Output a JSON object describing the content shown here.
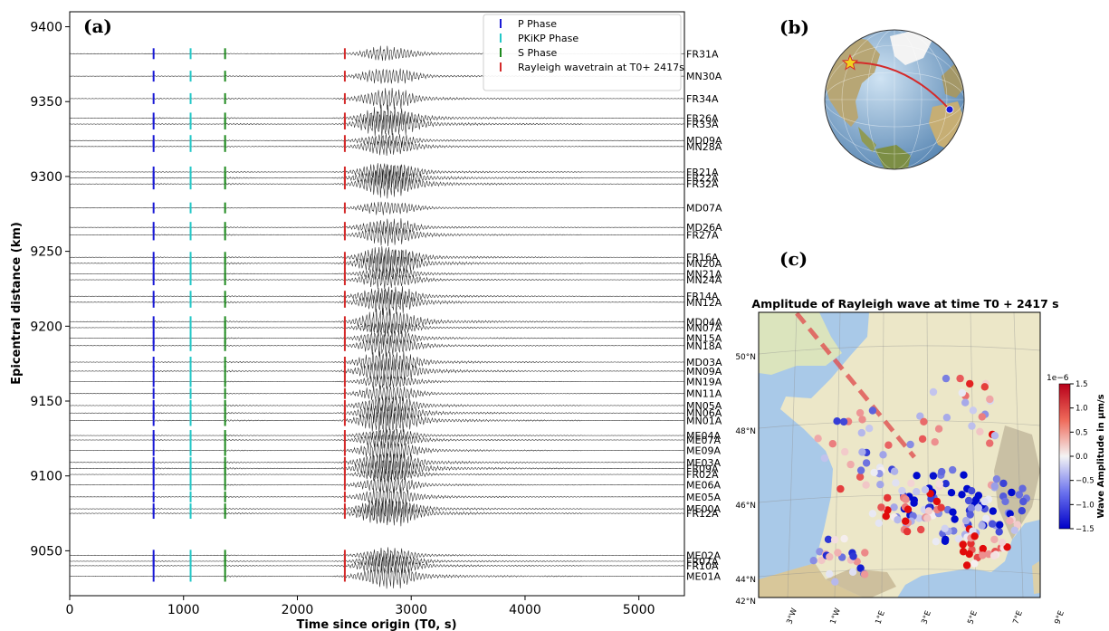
{
  "panels": {
    "a": "(a)",
    "b": "(b)",
    "c": "(c)"
  },
  "chart_data": [
    {
      "type": "line",
      "panel": "(a)",
      "xlabel": "Time since origin (T0, s)",
      "ylabel": "Epicentral distance (km)",
      "xlim": [
        0,
        5400
      ],
      "ylim": [
        9020,
        9410
      ],
      "xticks": [
        "0",
        "1000",
        "2000",
        "3000",
        "4000",
        "5000"
      ],
      "yticks": [
        "9050",
        "9100",
        "9150",
        "9200",
        "9250",
        "9300",
        "9350",
        "9400"
      ],
      "grid": false,
      "legend_position": "top-right",
      "legend": [
        {
          "label": "P Phase",
          "color": "#1a1ad6"
        },
        {
          "label": "PKiKP Phase",
          "color": "#22c7c7"
        },
        {
          "label": "S Phase",
          "color": "#1e8a1e"
        },
        {
          "label": "Rayleigh wavetrain at T0+ 2417s",
          "color": "#d42a2a"
        }
      ],
      "stations": [
        {
          "name": "FR31A",
          "distance": 9382
        },
        {
          "name": "MN30A",
          "distance": 9367
        },
        {
          "name": "FR34A",
          "distance": 9352
        },
        {
          "name": "FR26A",
          "distance": 9339
        },
        {
          "name": "FR33A",
          "distance": 9335
        },
        {
          "name": "MD09A",
          "distance": 9324
        },
        {
          "name": "MN28A",
          "distance": 9320
        },
        {
          "name": "FR21A",
          "distance": 9303
        },
        {
          "name": "FR22A",
          "distance": 9299
        },
        {
          "name": "FR32A",
          "distance": 9295
        },
        {
          "name": "MD07A",
          "distance": 9279
        },
        {
          "name": "MD26A",
          "distance": 9266
        },
        {
          "name": "FR27A",
          "distance": 9261
        },
        {
          "name": "FR16A",
          "distance": 9246
        },
        {
          "name": "MN20A",
          "distance": 9242
        },
        {
          "name": "MN21A",
          "distance": 9235
        },
        {
          "name": "MN24A",
          "distance": 9231
        },
        {
          "name": "FR14A",
          "distance": 9220
        },
        {
          "name": "MN12A",
          "distance": 9216
        },
        {
          "name": "MD04A",
          "distance": 9203
        },
        {
          "name": "MN07A",
          "distance": 9199
        },
        {
          "name": "MN15A",
          "distance": 9192
        },
        {
          "name": "MN18A",
          "distance": 9187
        },
        {
          "name": "MD03A",
          "distance": 9176
        },
        {
          "name": "MN09A",
          "distance": 9170
        },
        {
          "name": "MN19A",
          "distance": 9163
        },
        {
          "name": "MN11A",
          "distance": 9155
        },
        {
          "name": "MN05A",
          "distance": 9147
        },
        {
          "name": "MN06A",
          "distance": 9142
        },
        {
          "name": "MN01A",
          "distance": 9137
        },
        {
          "name": "ME04A",
          "distance": 9127
        },
        {
          "name": "ME07A",
          "distance": 9124
        },
        {
          "name": "ME09A",
          "distance": 9117
        },
        {
          "name": "ME03A",
          "distance": 9109
        },
        {
          "name": "FR09A",
          "distance": 9105
        },
        {
          "name": "FR02A",
          "distance": 9101
        },
        {
          "name": "ME06A",
          "distance": 9094
        },
        {
          "name": "ME05A",
          "distance": 9086
        },
        {
          "name": "ME00A",
          "distance": 9078
        },
        {
          "name": "FR12A",
          "distance": 9075
        },
        {
          "name": "ME02A",
          "distance": 9047
        },
        {
          "name": "FR07A",
          "distance": 9043
        },
        {
          "name": "FR10A",
          "distance": 9040
        },
        {
          "name": "ME01A",
          "distance": 9033
        }
      ],
      "phase_picks_s": {
        "P": 737,
        "PKiKP": 1062,
        "S": 1365,
        "Rayleigh": 2417
      }
    },
    {
      "type": "scatter",
      "panel": "(c)",
      "title": "Amplitude of Rayleigh wave at time T0 + 2417 s",
      "colorbar_label": "Wave Amplitude in μm/s",
      "colorbar_scale": "1e−6",
      "colorbar_ticks": [
        "1.5",
        "1.0",
        "0.5",
        "0.0",
        "−0.5",
        "−1.0",
        "−1.5"
      ],
      "colorbar_range": [
        -1.5,
        1.5
      ],
      "lat_ticks": [
        "50°N",
        "48°N",
        "46°N",
        "44°N",
        "42°N"
      ],
      "lon_ticks": [
        "3°W",
        "1°W",
        "1°E",
        "3°E",
        "5°E",
        "7°E",
        "9°E"
      ],
      "lon_range": [
        -4,
        9.5
      ],
      "lat_range": [
        41.3,
        51.3
      ]
    }
  ],
  "colors": {
    "p_phase": "#1a1ad6",
    "pkikp_phase": "#22c7c7",
    "s_phase": "#1e8a1e",
    "rayleigh": "#d42a2a",
    "ocean": "#a9c9e8",
    "land": "#ece7c8"
  }
}
